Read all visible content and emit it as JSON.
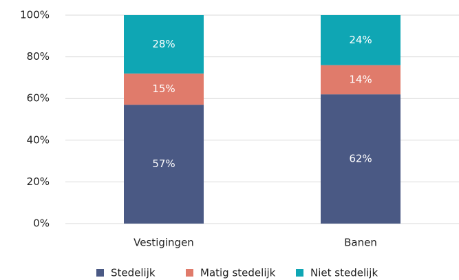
{
  "chart_data": {
    "type": "stacked_bar",
    "categories": [
      "Vestigingen",
      "Banen"
    ],
    "series": [
      {
        "name": "Stedelijk",
        "color": "#4a5984",
        "values": [
          57,
          62
        ],
        "value_labels": [
          "57%",
          "62%"
        ]
      },
      {
        "name": "Matig stedelijk",
        "color": "#e07b6b",
        "values": [
          15,
          14
        ],
        "value_labels": [
          "15%",
          "14%"
        ]
      },
      {
        "name": "Niet stedelijk",
        "color": "#0fa6b4",
        "values": [
          28,
          24
        ],
        "value_labels": [
          "28%",
          "24%"
        ]
      }
    ],
    "ylim": [
      0,
      100
    ],
    "yticks": [
      {
        "value": 0,
        "label": "0%"
      },
      {
        "value": 20,
        "label": "20%"
      },
      {
        "value": 40,
        "label": "40%"
      },
      {
        "value": 60,
        "label": "60%"
      },
      {
        "value": 80,
        "label": "80%"
      },
      {
        "value": 100,
        "label": "100%"
      }
    ],
    "grid": true,
    "legend": "bottom"
  }
}
